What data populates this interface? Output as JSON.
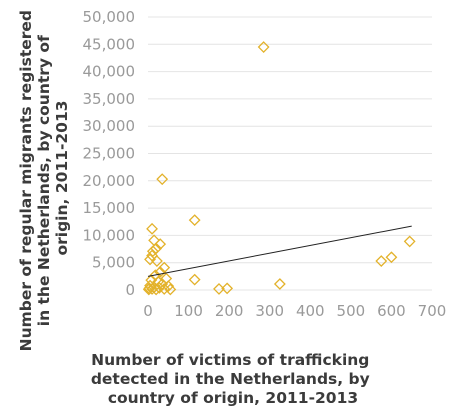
{
  "chart_data": {
    "type": "scatter",
    "title": "",
    "xlabel_lines": [
      "Number of victims of trafficking",
      "detected in the Netherlands, by",
      "country of origin, 2011-2013"
    ],
    "ylabel_lines": [
      "Number of regular migrants registered",
      "in the Netherlands, by country of",
      "origin, 2011-2013"
    ],
    "xlim": [
      0,
      700
    ],
    "ylim": [
      0,
      50000
    ],
    "x_ticks": [
      "0",
      "100",
      "200",
      "300",
      "400",
      "500",
      "600",
      "700"
    ],
    "y_ticks": [
      "0",
      "5,000",
      "10,000",
      "15,000",
      "20,000",
      "25,000",
      "30,000",
      "35,000",
      "40,000",
      "45,000",
      "50,000"
    ],
    "grid": "horizontal",
    "legend": "none",
    "marker": "hollow-diamond",
    "marker_color": "#e3b22b",
    "trendline": {
      "type": "linear",
      "color": "#222222",
      "from": [
        0,
        2500
      ],
      "to": [
        650,
        11700
      ]
    },
    "points": [
      {
        "x": 285,
        "y": 44500
      },
      {
        "x": 35,
        "y": 20300
      },
      {
        "x": 115,
        "y": 12800
      },
      {
        "x": 10,
        "y": 11200
      },
      {
        "x": 15,
        "y": 9100
      },
      {
        "x": 30,
        "y": 8400
      },
      {
        "x": 20,
        "y": 7600
      },
      {
        "x": 12,
        "y": 7100
      },
      {
        "x": 10,
        "y": 6300
      },
      {
        "x": 5,
        "y": 5600
      },
      {
        "x": 22,
        "y": 5300
      },
      {
        "x": 40,
        "y": 4100
      },
      {
        "x": 30,
        "y": 3300
      },
      {
        "x": 18,
        "y": 2700
      },
      {
        "x": 45,
        "y": 2100
      },
      {
        "x": 115,
        "y": 1900
      },
      {
        "x": 8,
        "y": 1800
      },
      {
        "x": 25,
        "y": 1500
      },
      {
        "x": 35,
        "y": 1100
      },
      {
        "x": 50,
        "y": 700
      },
      {
        "x": 5,
        "y": 800
      },
      {
        "x": 15,
        "y": 500
      },
      {
        "x": 28,
        "y": 400
      },
      {
        "x": 3,
        "y": 300
      },
      {
        "x": 10,
        "y": 200
      },
      {
        "x": 20,
        "y": 100
      },
      {
        "x": 40,
        "y": 200
      },
      {
        "x": 55,
        "y": 100
      },
      {
        "x": 2,
        "y": 100
      },
      {
        "x": 175,
        "y": 200
      },
      {
        "x": 195,
        "y": 300
      },
      {
        "x": 325,
        "y": 1100
      },
      {
        "x": 575,
        "y": 5300
      },
      {
        "x": 600,
        "y": 6000
      },
      {
        "x": 645,
        "y": 8900
      }
    ]
  }
}
